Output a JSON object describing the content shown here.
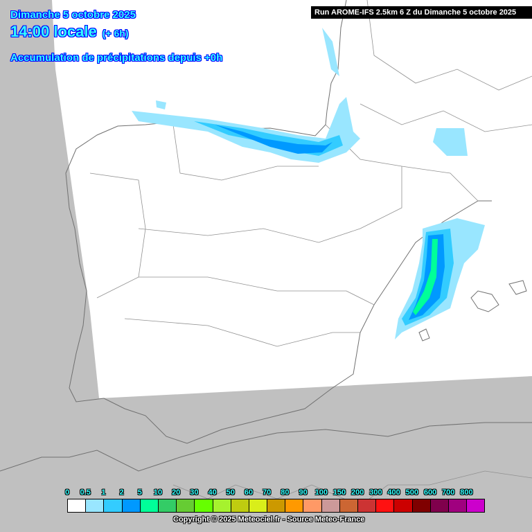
{
  "header": {
    "date": "Dimanche 5 octobre 2025",
    "time": "14:00 locale",
    "offset": "(+ 6h)",
    "field": "Accumulation de précipitations depuis +0h",
    "run": "Run AROME-IFS 2.5km 6 Z du Dimanche 5 octobre 2025"
  },
  "legend": {
    "labels": [
      "0",
      "0.5",
      "1",
      "2",
      "5",
      "10",
      "20",
      "30",
      "40",
      "50",
      "60",
      "70",
      "80",
      "90",
      "100",
      "150",
      "200",
      "300",
      "400",
      "500",
      "600",
      "700",
      "800"
    ],
    "colors": [
      "#ffffff",
      "#99e6ff",
      "#33ccff",
      "#0099ff",
      "#00ff99",
      "#33cc66",
      "#66cc33",
      "#66ff00",
      "#a6f22e",
      "#bfcc10",
      "#d9ee1a",
      "#cc9900",
      "#ff9900",
      "#ff9966",
      "#cc9999",
      "#cc6633",
      "#cc3333",
      "#ff1111",
      "#cc0000",
      "#7f0000",
      "#7f004c",
      "#a0007f",
      "#cc00cc"
    ]
  },
  "footer": {
    "copyright": "Copyright © 2025 Meteociel.fr - Source Meteo-France"
  },
  "colors": {
    "outside_domain": "#c0c0c0",
    "domain": "#ffffff",
    "borders": "#808080",
    "title_fill": "#33ffff",
    "title_outline": "#0000ff"
  }
}
